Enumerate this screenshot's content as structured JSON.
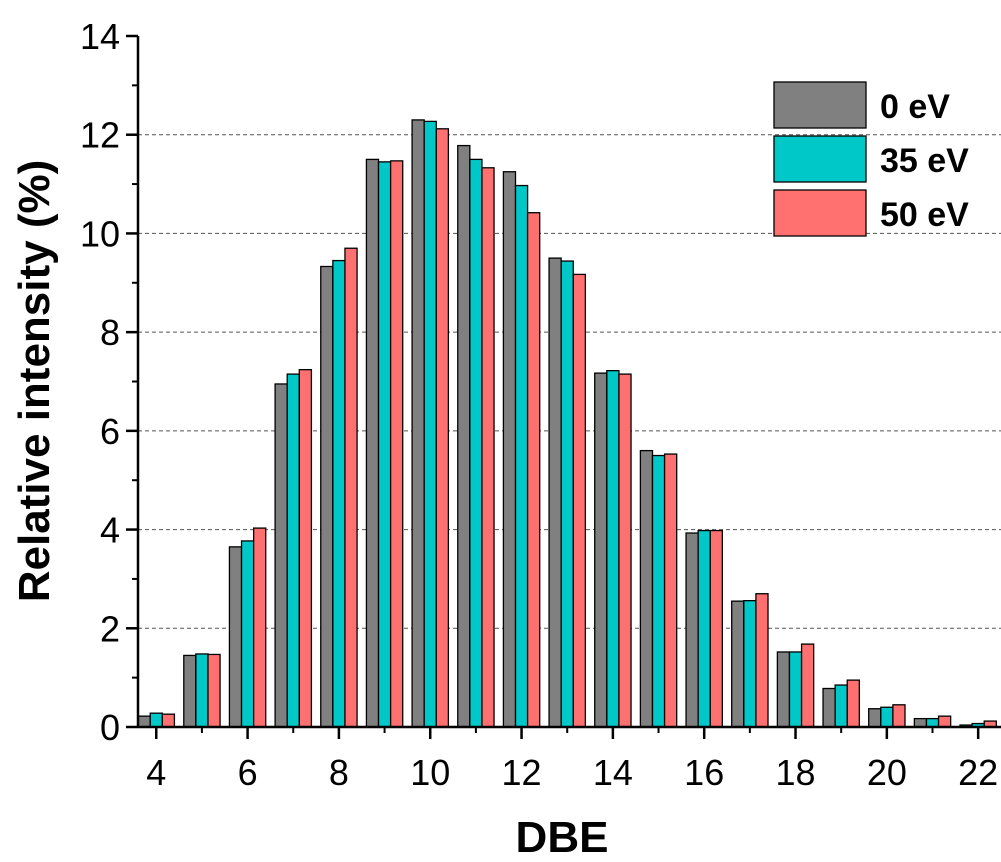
{
  "chart_data": {
    "type": "bar",
    "title": "",
    "xlabel": "DBE",
    "ylabel": "Relative intensity (%)",
    "xlim": [
      3.6,
      22.5
    ],
    "ylim": [
      0,
      14
    ],
    "x_ticks": [
      4,
      6,
      8,
      10,
      12,
      14,
      16,
      18,
      20,
      22
    ],
    "y_ticks": [
      0,
      2,
      4,
      6,
      8,
      10,
      12,
      14
    ],
    "grid": "horizontal dashed",
    "legend_position": "top-right",
    "x": [
      4,
      5,
      6,
      7,
      8,
      9,
      10,
      11,
      12,
      13,
      14,
      15,
      16,
      17,
      18,
      19,
      20,
      21,
      22
    ],
    "series": [
      {
        "name": "0 eV",
        "color": "#808080",
        "values": [
          0.22,
          1.45,
          3.65,
          6.95,
          9.33,
          11.5,
          12.3,
          11.78,
          11.25,
          9.5,
          7.17,
          5.6,
          3.93,
          2.55,
          1.52,
          0.78,
          0.37,
          0.17,
          0.04
        ]
      },
      {
        "name": "35 eV",
        "color": "#00c8c8",
        "values": [
          0.28,
          1.48,
          3.77,
          7.15,
          9.45,
          11.45,
          12.27,
          11.5,
          10.97,
          9.44,
          7.22,
          5.5,
          3.98,
          2.56,
          1.52,
          0.85,
          0.4,
          0.17,
          0.07
        ]
      },
      {
        "name": "50 eV",
        "color": "#ff7070",
        "values": [
          0.26,
          1.47,
          4.03,
          7.24,
          9.7,
          11.47,
          12.12,
          11.33,
          10.42,
          9.17,
          7.15,
          5.53,
          3.98,
          2.7,
          1.68,
          0.95,
          0.45,
          0.22,
          0.12
        ]
      }
    ]
  }
}
